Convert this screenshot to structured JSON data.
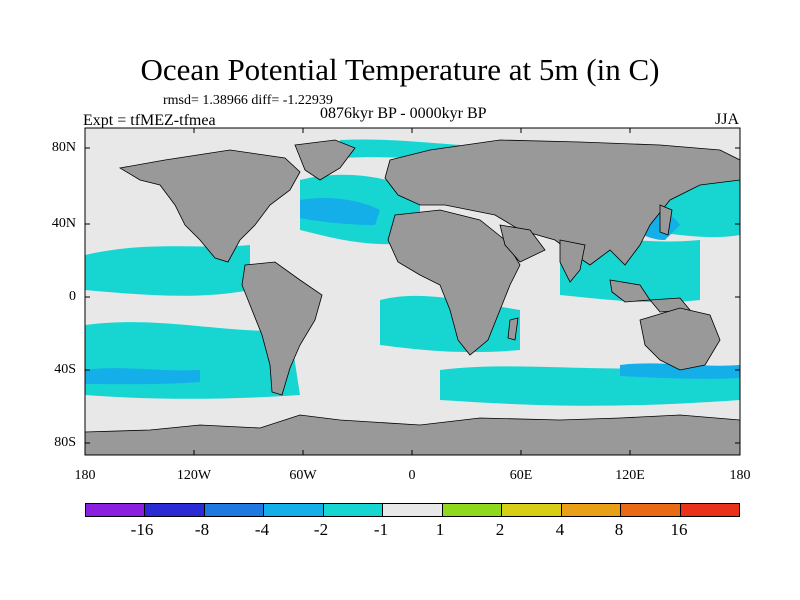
{
  "title": "Ocean Potential Temperature at 5m (in C)",
  "stats": "rmsd= 1.38966 diff= -1.22939",
  "expt": "Expt = tfMEZ-tfmea",
  "period": "0876kyr BP - 0000kyr BP",
  "season": "JJA",
  "lat_labels": [
    "80N",
    "40N",
    "0",
    "40S",
    "80S"
  ],
  "lon_labels": [
    "180",
    "120W",
    "60W",
    "0",
    "60E",
    "120E",
    "180"
  ],
  "colorbar": {
    "colors": [
      "#8a1fe0",
      "#2b2bd6",
      "#1e78e0",
      "#14aee8",
      "#17d6d2",
      "#e8e8e8",
      "#8fd81e",
      "#d6cf16",
      "#e8a016",
      "#e86a16",
      "#e8321a"
    ],
    "labels": [
      "-16",
      "-8",
      "-4",
      "-2",
      "-1",
      "1",
      "2",
      "4",
      "8",
      "16"
    ]
  },
  "map_colors": {
    "land": "#999999",
    "ocean_neutral": "#e8e8e8",
    "minus1": "#17d6d2",
    "minus2": "#14aee8"
  }
}
